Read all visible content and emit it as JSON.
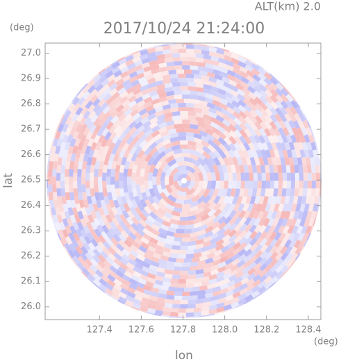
{
  "chart_data": {
    "type": "radar-ppi",
    "title": "2017/10/24 21:24:00",
    "annotation": "ALT(km) 2.0",
    "x_unit": "(deg)",
    "y_unit": "(deg)",
    "x_label": "lon",
    "y_label": "lat",
    "xlim": [
      127.14,
      128.46
    ],
    "ylim": [
      25.95,
      27.04
    ],
    "xticks": [
      127.4,
      127.6,
      127.8,
      {
        "value": 128,
        "label": "128.0"
      },
      128.2,
      128.4
    ],
    "yticks": [
      {
        "value": 26,
        "label": "26.0"
      },
      26.1,
      26.2,
      26.3,
      26.4,
      26.5,
      26.6,
      26.7,
      26.8,
      26.9,
      {
        "value": 27,
        "label": "27.0"
      }
    ]
  }
}
